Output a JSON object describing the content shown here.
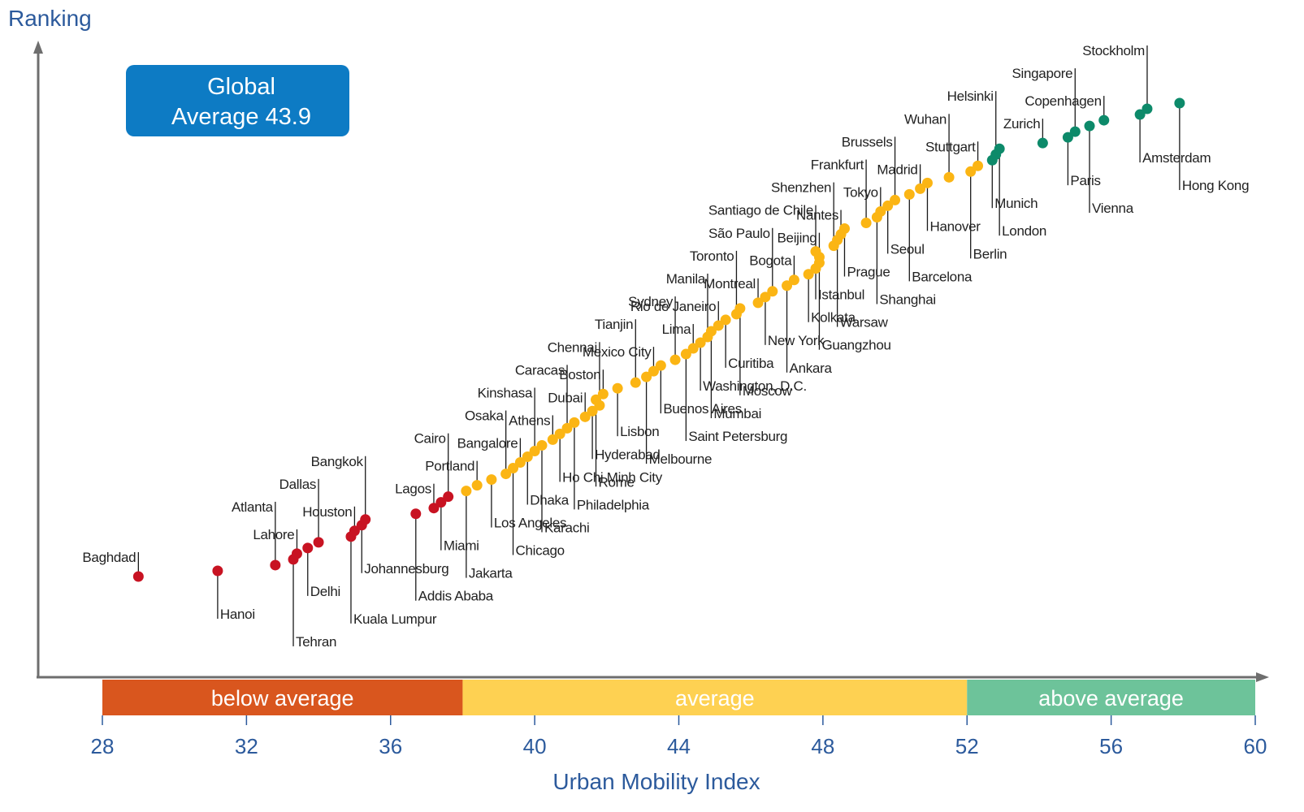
{
  "chart_data": {
    "type": "scatter",
    "ylabel": "Ranking",
    "xlabel": "Urban Mobility Index",
    "xlim": [
      28,
      60
    ],
    "x_ticks": [
      "28",
      "32",
      "36",
      "40",
      "44",
      "48",
      "52",
      "56",
      "60"
    ],
    "y_values_shown": false,
    "annotation": {
      "line1": "Global",
      "line2": "Average 43.9"
    },
    "bands": [
      {
        "label": "below average",
        "from": 28,
        "to": 38,
        "color": "#d9561e"
      },
      {
        "label": "average",
        "from": 38,
        "to": 52,
        "color": "#fed152"
      },
      {
        "label": "above average",
        "from": 52,
        "to": 60,
        "color": "#6dc39a"
      }
    ],
    "category_colors": {
      "below": "#c81322",
      "average": "#fbb514",
      "above": "#0d8a6a"
    },
    "points": [
      {
        "city": "Baghdad",
        "x": 29.0,
        "rank": 1,
        "cat": "below"
      },
      {
        "city": "Hanoi",
        "x": 31.2,
        "rank": 2,
        "cat": "below"
      },
      {
        "city": "Atlanta",
        "x": 32.8,
        "rank": 3,
        "cat": "below"
      },
      {
        "city": "Tehran",
        "x": 33.3,
        "rank": 4,
        "cat": "below"
      },
      {
        "city": "Lahore",
        "x": 33.4,
        "rank": 5,
        "cat": "below"
      },
      {
        "city": "Delhi",
        "x": 33.7,
        "rank": 6,
        "cat": "below"
      },
      {
        "city": "Dallas",
        "x": 34.0,
        "rank": 7,
        "cat": "below"
      },
      {
        "city": "Kuala Lumpur",
        "x": 34.9,
        "rank": 8,
        "cat": "below"
      },
      {
        "city": "Houston",
        "x": 35.0,
        "rank": 9,
        "cat": "below"
      },
      {
        "city": "Johannesburg",
        "x": 35.2,
        "rank": 10,
        "cat": "below"
      },
      {
        "city": "Bangkok",
        "x": 35.3,
        "rank": 11,
        "cat": "below"
      },
      {
        "city": "Addis Ababa",
        "x": 36.7,
        "rank": 12,
        "cat": "below"
      },
      {
        "city": "Lagos",
        "x": 37.2,
        "rank": 13,
        "cat": "below"
      },
      {
        "city": "Miami",
        "x": 37.4,
        "rank": 14,
        "cat": "below"
      },
      {
        "city": "Cairo",
        "x": 37.6,
        "rank": 15,
        "cat": "below"
      },
      {
        "city": "Jakarta",
        "x": 38.1,
        "rank": 16,
        "cat": "average"
      },
      {
        "city": "Portland",
        "x": 38.4,
        "rank": 17,
        "cat": "average"
      },
      {
        "city": "Los Angeles",
        "x": 38.8,
        "rank": 18,
        "cat": "average"
      },
      {
        "city": "Osaka",
        "x": 39.2,
        "rank": 19,
        "cat": "average"
      },
      {
        "city": "Chicago",
        "x": 39.4,
        "rank": 20,
        "cat": "average"
      },
      {
        "city": "Bangalore",
        "x": 39.6,
        "rank": 21,
        "cat": "average"
      },
      {
        "city": "Dhaka",
        "x": 39.8,
        "rank": 22,
        "cat": "average"
      },
      {
        "city": "Kinshasa",
        "x": 40.0,
        "rank": 23,
        "cat": "average"
      },
      {
        "city": "Karachi",
        "x": 40.2,
        "rank": 24,
        "cat": "average"
      },
      {
        "city": "Athens",
        "x": 40.5,
        "rank": 25,
        "cat": "average"
      },
      {
        "city": "Ho Chi Minh City",
        "x": 40.7,
        "rank": 26,
        "cat": "average"
      },
      {
        "city": "Caracas",
        "x": 40.9,
        "rank": 27,
        "cat": "average"
      },
      {
        "city": "Philadelphia",
        "x": 41.1,
        "rank": 28,
        "cat": "average"
      },
      {
        "city": "Dubai",
        "x": 41.4,
        "rank": 29,
        "cat": "average"
      },
      {
        "city": "Hyderabad",
        "x": 41.6,
        "rank": 30,
        "cat": "average"
      },
      {
        "city": "Chennai",
        "x": 41.8,
        "rank": 31,
        "cat": "average"
      },
      {
        "city": "Rome",
        "x": 41.7,
        "rank": 32,
        "cat": "average"
      },
      {
        "city": "Boston",
        "x": 41.9,
        "rank": 33,
        "cat": "average"
      },
      {
        "city": "Lisbon",
        "x": 42.3,
        "rank": 34,
        "cat": "average"
      },
      {
        "city": "Tianjin",
        "x": 42.8,
        "rank": 35,
        "cat": "average"
      },
      {
        "city": "Melbourne",
        "x": 43.1,
        "rank": 36,
        "cat": "average"
      },
      {
        "city": "Mexico City",
        "x": 43.3,
        "rank": 37,
        "cat": "average"
      },
      {
        "city": "Buenos Aires",
        "x": 43.5,
        "rank": 38,
        "cat": "average"
      },
      {
        "city": "Sydney",
        "x": 43.9,
        "rank": 39,
        "cat": "average"
      },
      {
        "city": "Saint Petersburg",
        "x": 44.2,
        "rank": 40,
        "cat": "average"
      },
      {
        "city": "Lima",
        "x": 44.4,
        "rank": 41,
        "cat": "average"
      },
      {
        "city": "Washington, D.C.",
        "x": 44.6,
        "rank": 42,
        "cat": "average"
      },
      {
        "city": "Manila",
        "x": 44.8,
        "rank": 43,
        "cat": "average"
      },
      {
        "city": "Mumbai",
        "x": 44.9,
        "rank": 44,
        "cat": "average"
      },
      {
        "city": "Rio de Janeiro",
        "x": 45.1,
        "rank": 45,
        "cat": "average"
      },
      {
        "city": "Curitiba",
        "x": 45.3,
        "rank": 46,
        "cat": "average"
      },
      {
        "city": "Toronto",
        "x": 45.6,
        "rank": 47,
        "cat": "average"
      },
      {
        "city": "Moscow",
        "x": 45.7,
        "rank": 48,
        "cat": "average"
      },
      {
        "city": "Montreal",
        "x": 46.2,
        "rank": 49,
        "cat": "average"
      },
      {
        "city": "New York",
        "x": 46.4,
        "rank": 50,
        "cat": "average"
      },
      {
        "city": "São Paulo",
        "x": 46.6,
        "rank": 51,
        "cat": "average"
      },
      {
        "city": "Ankara",
        "x": 47.0,
        "rank": 52,
        "cat": "average"
      },
      {
        "city": "Bogota",
        "x": 47.2,
        "rank": 53,
        "cat": "average"
      },
      {
        "city": "Kolkata",
        "x": 47.6,
        "rank": 54,
        "cat": "average"
      },
      {
        "city": "Santiago de Chile",
        "x": 47.8,
        "rank": 55,
        "cat": "average"
      },
      {
        "city": "Guangzhou",
        "x": 47.9,
        "rank": 56,
        "cat": "average"
      },
      {
        "city": "Beijing",
        "x": 47.9,
        "rank": 57,
        "cat": "average"
      },
      {
        "city": "Istanbul",
        "x": 47.8,
        "rank": 58,
        "cat": "average"
      },
      {
        "city": "Shenzhen",
        "x": 48.3,
        "rank": 59,
        "cat": "average"
      },
      {
        "city": "Warsaw",
        "x": 48.4,
        "rank": 60,
        "cat": "average"
      },
      {
        "city": "Nantes",
        "x": 48.5,
        "rank": 61,
        "cat": "average"
      },
      {
        "city": "Prague",
        "x": 48.6,
        "rank": 62,
        "cat": "average"
      },
      {
        "city": "Frankfurt",
        "x": 49.2,
        "rank": 63,
        "cat": "average"
      },
      {
        "city": "Shanghai",
        "x": 49.5,
        "rank": 64,
        "cat": "average"
      },
      {
        "city": "Tokyo",
        "x": 49.6,
        "rank": 65,
        "cat": "average"
      },
      {
        "city": "Seoul",
        "x": 49.8,
        "rank": 66,
        "cat": "average"
      },
      {
        "city": "Brussels",
        "x": 50.0,
        "rank": 67,
        "cat": "average"
      },
      {
        "city": "Barcelona",
        "x": 50.4,
        "rank": 68,
        "cat": "average"
      },
      {
        "city": "Madrid",
        "x": 50.7,
        "rank": 69,
        "cat": "average"
      },
      {
        "city": "Hanover",
        "x": 50.9,
        "rank": 70,
        "cat": "average"
      },
      {
        "city": "Wuhan",
        "x": 51.5,
        "rank": 71,
        "cat": "average"
      },
      {
        "city": "Berlin",
        "x": 52.1,
        "rank": 72,
        "cat": "average"
      },
      {
        "city": "Stuttgart",
        "x": 52.3,
        "rank": 73,
        "cat": "average"
      },
      {
        "city": "Munich",
        "x": 52.7,
        "rank": 74,
        "cat": "above"
      },
      {
        "city": "Helsinki",
        "x": 52.8,
        "rank": 75,
        "cat": "above"
      },
      {
        "city": "London",
        "x": 52.9,
        "rank": 76,
        "cat": "above"
      },
      {
        "city": "Zurich",
        "x": 54.1,
        "rank": 77,
        "cat": "above"
      },
      {
        "city": "Paris",
        "x": 54.8,
        "rank": 78,
        "cat": "above"
      },
      {
        "city": "Singapore",
        "x": 55.0,
        "rank": 79,
        "cat": "above"
      },
      {
        "city": "Vienna",
        "x": 55.4,
        "rank": 80,
        "cat": "above"
      },
      {
        "city": "Copenhagen",
        "x": 55.8,
        "rank": 81,
        "cat": "above"
      },
      {
        "city": "Amsterdam",
        "x": 56.8,
        "rank": 82,
        "cat": "above"
      },
      {
        "city": "Stockholm",
        "x": 57.0,
        "rank": 83,
        "cat": "above"
      },
      {
        "city": "Hong Kong",
        "x": 57.9,
        "rank": 84,
        "cat": "above"
      }
    ]
  }
}
